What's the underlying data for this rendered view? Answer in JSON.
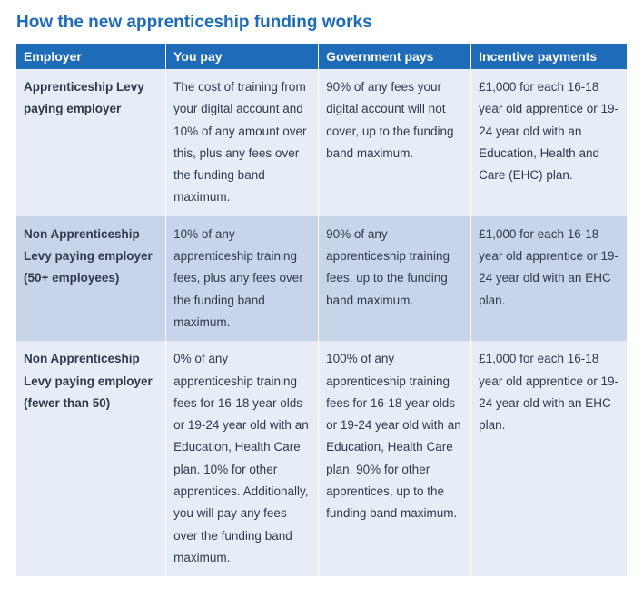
{
  "title": "How the new apprenticeship funding works",
  "title_color": "#1e6bb8",
  "header_bg": "#1e6bb8",
  "header_fg": "#ffffff",
  "row_bg_light": "#e6edf7",
  "row_bg_dark": "#c7d4ea",
  "text_color": "#2f3b4a",
  "columns": [
    "Employer",
    "You pay",
    "Government pays",
    "Incentive payments"
  ],
  "rows": [
    {
      "bg": "light",
      "cells": [
        "Apprenticeship Levy paying employer",
        "The cost of training from your digital account and 10% of any amount over this, plus any fees over the funding band maximum.",
        "90% of any fees your digital account will not cover, up to the funding band maximum.",
        "£1,000 for each 16-18 year old apprentice or 19-24 year old with an Education, Health and Care (EHC) plan."
      ]
    },
    {
      "bg": "dark",
      "cells": [
        "Non Apprenticeship Levy paying employer (50+ employees)",
        "10% of any apprenticeship training fees, plus any fees over the funding band maximum.",
        "90% of any apprenticeship training fees, up to the funding band maximum.",
        "£1,000 for each 16-18 year old apprentice or 19-24 year old with an EHC plan."
      ]
    },
    {
      "bg": "light",
      "cells": [
        "Non Apprenticeship Levy paying employer (fewer than 50)",
        "0% of any apprenticeship training fees for 16-18 year olds or 19-24 year old with an Education, Health Care plan. 10% for other apprentices. Additionally, you will pay any fees over the funding band maximum.",
        "100% of any apprenticeship training fees for 16-18 year olds or 19-24 year old with an Education, Health Care plan. 90% for other apprentices, up to the funding band maximum.",
        "£1,000 for each 16-18 year old apprentice or 19-24 year old with an EHC plan."
      ]
    }
  ]
}
